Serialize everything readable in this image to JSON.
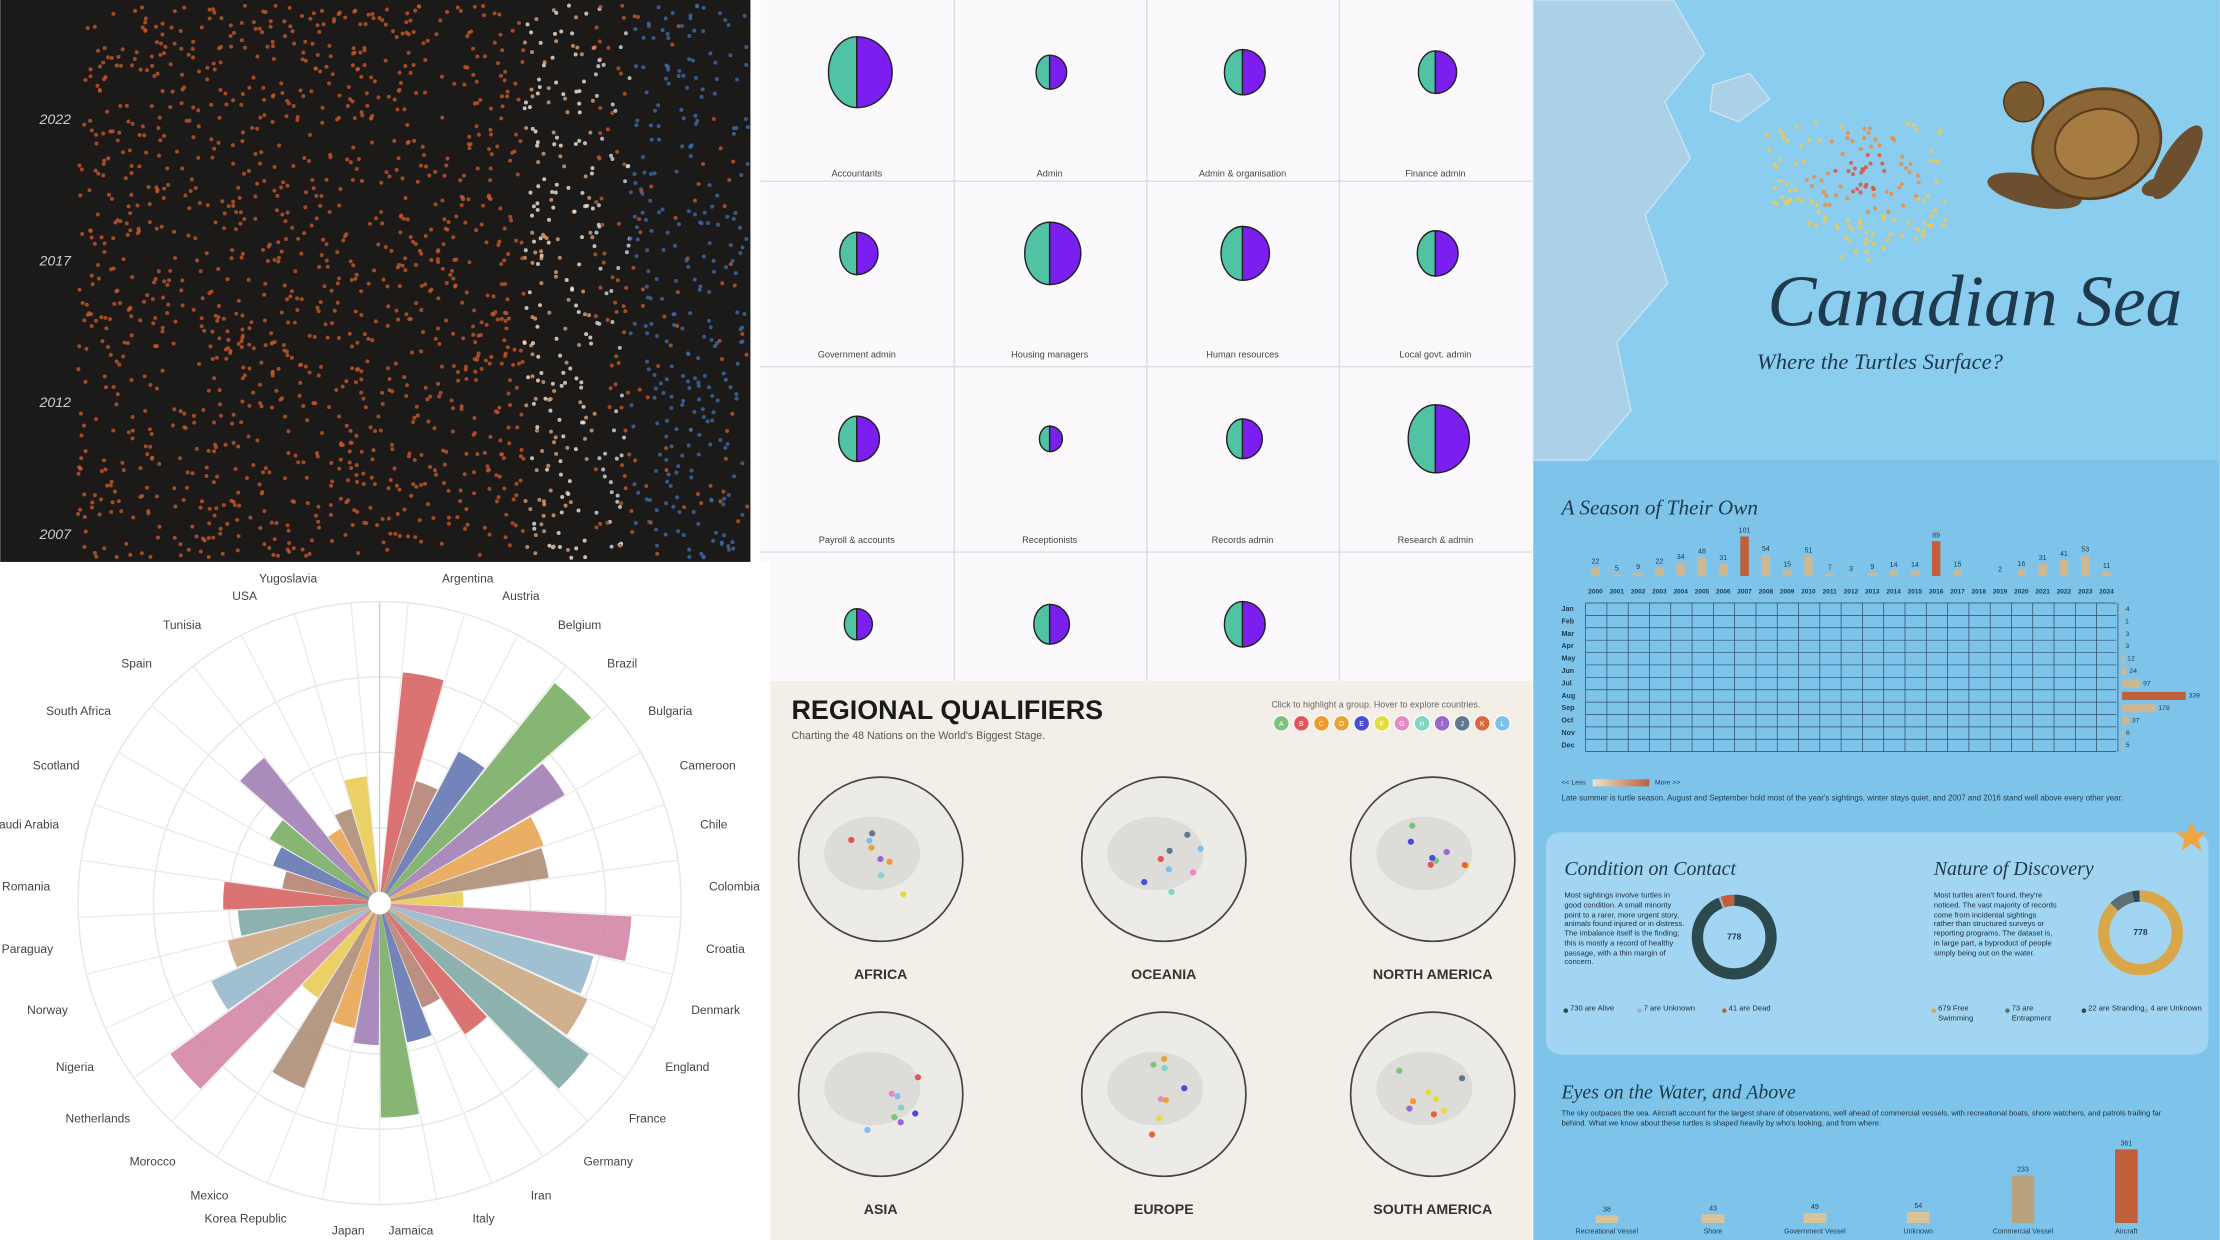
{
  "scatter_panel": {
    "year_labels": [
      "2022",
      "2017",
      "2012",
      "2007"
    ]
  },
  "occupations": {
    "items": [
      {
        "label": "Accountants",
        "size": 25
      },
      {
        "label": "Admin",
        "size": 12
      },
      {
        "label": "Admin & organisation",
        "size": 16
      },
      {
        "label": "Finance admin",
        "size": 15
      },
      {
        "label": "Government admin",
        "size": 15
      },
      {
        "label": "Housing managers",
        "size": 22
      },
      {
        "label": "Human resources",
        "size": 19
      },
      {
        "label": "Local govt. admin",
        "size": 16
      },
      {
        "label": "Payroll & accounts",
        "size": 16
      },
      {
        "label": "Receptionists",
        "size": 9
      },
      {
        "label": "Records admin",
        "size": 14
      },
      {
        "label": "Research & admin",
        "size": 24
      },
      {
        "label": null,
        "size": 11
      },
      {
        "label": null,
        "size": 14
      },
      {
        "label": null,
        "size": 16
      }
    ]
  },
  "radial_chart": {
    "type": "bar",
    "categories": [
      "Argentina",
      "Austria",
      "Belgium",
      "Brazil",
      "Bulgaria",
      "Cameroon",
      "Chile",
      "Colombia",
      "Croatia",
      "Denmark",
      "England",
      "France",
      "Germany",
      "Iran",
      "Italy",
      "Jamaica",
      "Japan",
      "Korea Republic",
      "Mexico",
      "Morocco",
      "Netherlands",
      "Nigeria",
      "Norway",
      "Paraguay",
      "Romania",
      "Saudi Arabia",
      "Scotland",
      "South Africa",
      "Spain",
      "Tunisia",
      "USA",
      "Yugoslavia"
    ],
    "values": [
      76,
      40,
      55,
      93,
      70,
      56,
      55,
      25,
      83,
      72,
      75,
      85,
      50,
      35,
      45,
      70,
      45,
      40,
      65,
      35,
      85,
      60,
      50,
      45,
      50,
      30,
      35,
      40,
      60,
      25,
      30,
      40
    ],
    "rlim": [
      0,
      100
    ]
  },
  "qualifiers": {
    "title": "REGIONAL QUALIFIERS",
    "subtitle": "Charting the 48 Nations on the World's Biggest Stage.",
    "hint": "Click to highlight a group. Hover to explore countries.",
    "groups": [
      "A",
      "B",
      "C",
      "D",
      "E",
      "F",
      "G",
      "H",
      "I",
      "J",
      "K",
      "L"
    ],
    "group_colors": [
      "#7cc47c",
      "#e05656",
      "#f09a2e",
      "#e8a23a",
      "#4b4bd6",
      "#e4dc3e",
      "#e68ac4",
      "#7fd6c6",
      "#9868cf",
      "#5f7890",
      "#e0663a",
      "#7fc0ea"
    ],
    "regions": [
      "AFRICA",
      "OCEANIA",
      "NORTH AMERICA",
      "ASIA",
      "EUROPE",
      "SOUTH AMERICA"
    ]
  },
  "turtles": {
    "title": "Canadian Sea",
    "subtitle": "Where the Turtles Surface?",
    "season": {
      "title": "A Season of Their Own",
      "years": [
        "2000",
        "2001",
        "2002",
        "2003",
        "2004",
        "2005",
        "2006",
        "2007",
        "2008",
        "2009",
        "2010",
        "2011",
        "2012",
        "2013",
        "2014",
        "2015",
        "2016",
        "2017",
        "2018",
        "2019",
        "2020",
        "2021",
        "2022",
        "2023",
        "2024"
      ],
      "year_totals": [
        22,
        5,
        9,
        22,
        34,
        48,
        31,
        101,
        54,
        15,
        51,
        7,
        3,
        9,
        14,
        14,
        89,
        15,
        null,
        2,
        16,
        31,
        41,
        53,
        11
      ],
      "months": [
        "Jan",
        "Feb",
        "Mar",
        "Apr",
        "May",
        "Jun",
        "Jul",
        "Aug",
        "Sep",
        "Oct",
        "Nov",
        "Dec"
      ],
      "month_totals": [
        4,
        1,
        3,
        3,
        12,
        24,
        97,
        339,
        178,
        37,
        6,
        5
      ],
      "legend_less": "<< Less",
      "legend_more": "More >>",
      "caption": "Late summer is turtle season. August and September hold most of the year's sightings, winter stays quiet, and 2007 and 2016 stand well above every other year."
    },
    "condition": {
      "title": "Condition on Contact",
      "text": "Most sightings involve turtles in good condition. A small minority point to a rarer, more urgent story, animals found injured or in distress. The imbalance itself is the finding; this is mostly a record of healthy passage, with a thin margin of concern.",
      "total": 778,
      "values": [
        730,
        7,
        41
      ],
      "value_labels": [
        "730 are Alive",
        "7 are Unknown",
        "41 are Dead"
      ],
      "colors": [
        "#2c4a4e",
        "#9fb3bb",
        "#c0603a"
      ]
    },
    "discovery": {
      "title": "Nature of Discovery",
      "text": "Most turtles aren't found, they're noticed. The vast majority of records come from incidental sightings rather than structured surveys or reporting programs. The dataset is, in large part, a byproduct of people simply being out on the water.",
      "total": 778,
      "values": [
        679,
        73,
        22,
        4
      ],
      "value_labels": [
        "679 Free Swimming",
        "73 are Entrapment",
        "22 are Stranding",
        "4 are Unknown"
      ],
      "colors": [
        "#d9a648",
        "#5d6f73",
        "#2c4a4e",
        "#9fb3bb"
      ]
    },
    "observers": {
      "title": "Eyes on the Water, and Above",
      "text": "The sky outpaces the sea. Aircraft account for the largest share of observations, well ahead of commercial vessels, with recreational boats, shore watchers, and patrols trailing far behind. What we know about these turtles is shaped heavily by who's looking, and from where.",
      "categories": [
        "Recreational Vessel",
        "Shore",
        "Government Vessel",
        "Unknown",
        "Commercial Vessel",
        "Aircraft"
      ],
      "values": [
        38,
        43,
        49,
        54,
        233,
        361
      ],
      "colors": [
        "#d9c39a",
        "#d9c39a",
        "#d9c39a",
        "#d9c39a",
        "#b9a27e",
        "#c0603a"
      ]
    }
  }
}
